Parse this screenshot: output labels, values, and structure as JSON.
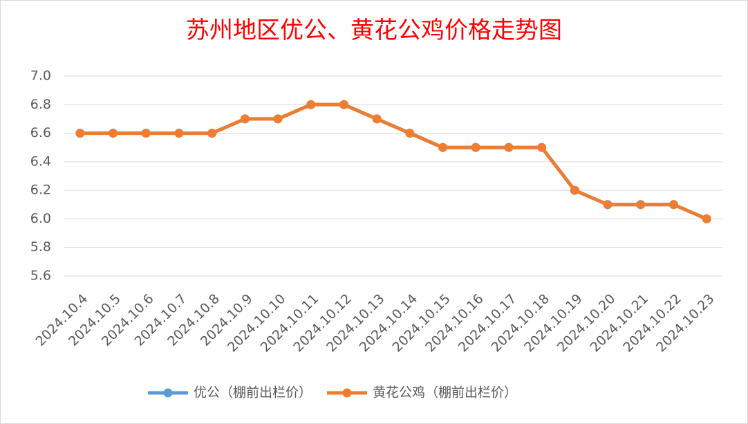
{
  "chart_data": {
    "type": "line",
    "title": "苏州地区优公、黄花公鸡价格走势图",
    "categories": [
      "2024.10.4",
      "2024.10.5",
      "2024.10.6",
      "2024.10.7",
      "2024.10.8",
      "2024.10.9",
      "2024.10.10",
      "2024.10.11",
      "2024.10.12",
      "2024.10.13",
      "2024.10.14",
      "2024.10.15",
      "2024.10.16",
      "2024.10.17",
      "2024.10.18",
      "2024.10.19",
      "2024.10.20",
      "2024.10.21",
      "2024.10.22",
      "2024.10.23"
    ],
    "series": [
      {
        "name": "优公（棚前出栏价）",
        "color": "#5b9bd5",
        "values": [
          6.6,
          6.6,
          6.6,
          6.6,
          6.6,
          6.7,
          6.7,
          6.8,
          6.8,
          6.7,
          6.6,
          6.5,
          6.5,
          6.5,
          6.5,
          6.2,
          6.1,
          6.1,
          6.1,
          6.0
        ]
      },
      {
        "name": "黄花公鸡（棚前出栏价）",
        "color": "#ed7d31",
        "values": [
          6.6,
          6.6,
          6.6,
          6.6,
          6.6,
          6.7,
          6.7,
          6.8,
          6.8,
          6.7,
          6.6,
          6.5,
          6.5,
          6.5,
          6.5,
          6.2,
          6.1,
          6.1,
          6.1,
          6.0
        ]
      }
    ],
    "ylim": [
      5.6,
      7.0
    ],
    "yticks": [
      5.6,
      5.8,
      {
        "value": 6,
        "label": "6.0"
      },
      6.2,
      6.4,
      6.6,
      6.8,
      {
        "value": 7,
        "label": "7.0"
      }
    ],
    "grid": true
  }
}
